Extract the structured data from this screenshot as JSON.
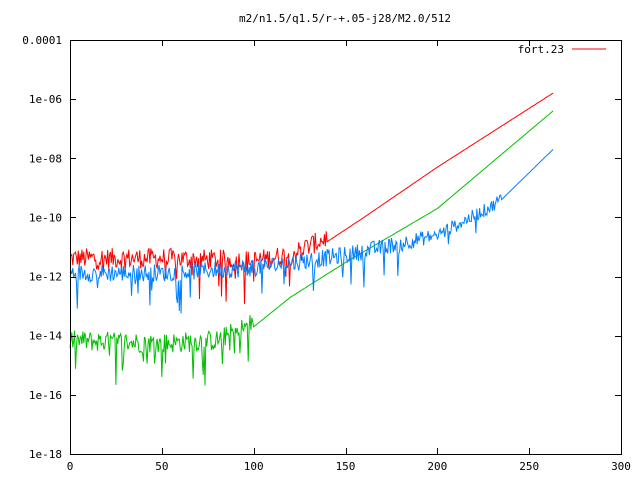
{
  "chart_data": {
    "type": "line",
    "title": "m2/n1.5/q1.5/r-+.05-j28/M2.0/512",
    "xlabel": "",
    "ylabel": "",
    "xlim": [
      0,
      300
    ],
    "ylim": [
      1e-18,
      0.0001
    ],
    "yscale": "log",
    "grid": false,
    "legend": "top-right",
    "x_ticks": [
      0,
      50,
      100,
      150,
      200,
      250,
      300
    ],
    "x_tick_labels": [
      "0",
      "50",
      "100",
      "150",
      "200",
      "250",
      "300"
    ],
    "y_ticks": [
      1e-18,
      1e-16,
      1e-14,
      1e-12,
      1e-10,
      1e-08,
      1e-06,
      0.0001
    ],
    "y_tick_labels": [
      "1e-18",
      "1e-16",
      "1e-14",
      "1e-12",
      "1e-10",
      "1e-08",
      "1e-06",
      "0.0001"
    ],
    "series": [
      {
        "name": "fort.23",
        "color": "#ff0000",
        "envelope": [
          {
            "x": 0,
            "y": 3e-12
          },
          {
            "x": 50,
            "y": 3e-12
          },
          {
            "x": 100,
            "y": 2.5e-12
          },
          {
            "x": 120,
            "y": 4e-12
          },
          {
            "x": 140,
            "y": 1.5e-11
          },
          {
            "x": 160,
            "y": 1e-10
          },
          {
            "x": 200,
            "y": 5e-09
          },
          {
            "x": 263,
            "y": 1.6e-06
          }
        ]
      },
      {
        "color": "#00c000",
        "envelope": [
          {
            "x": 0,
            "y": 5e-15
          },
          {
            "x": 50,
            "y": 4e-15
          },
          {
            "x": 80,
            "y": 5e-15
          },
          {
            "x": 100,
            "y": 2e-14
          },
          {
            "x": 120,
            "y": 2e-13
          },
          {
            "x": 150,
            "y": 3e-12
          },
          {
            "x": 200,
            "y": 2e-10
          },
          {
            "x": 263,
            "y": 4e-07
          }
        ]
      },
      {
        "color": "#0080ff",
        "envelope": [
          {
            "x": 0,
            "y": 1e-12
          },
          {
            "x": 50,
            "y": 1e-12
          },
          {
            "x": 100,
            "y": 1.5e-12
          },
          {
            "x": 150,
            "y": 4e-12
          },
          {
            "x": 200,
            "y": 2e-11
          },
          {
            "x": 230,
            "y": 2e-10
          },
          {
            "x": 263,
            "y": 2e-08
          }
        ]
      }
    ]
  }
}
